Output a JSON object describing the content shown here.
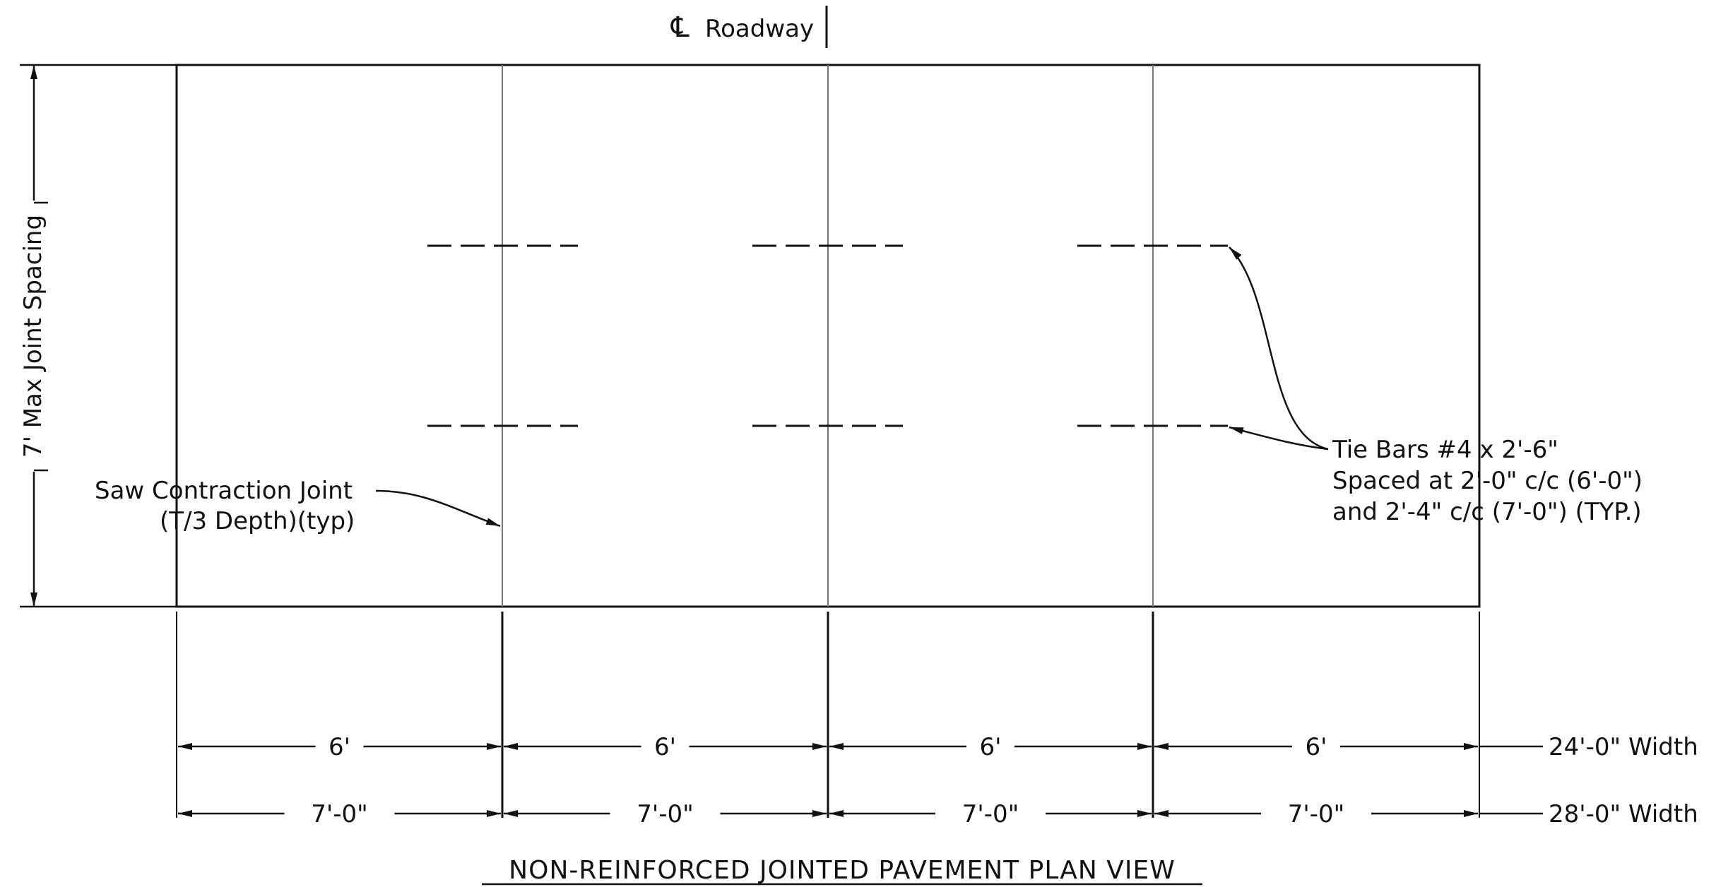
{
  "header": {
    "centerline_symbol": "℄",
    "centerline_label": "Roadway"
  },
  "dimensions": {
    "vertical_label": "7' Max Joint Spacing",
    "row1_segments": [
      "6'",
      "6'",
      "6'",
      "6'"
    ],
    "row1_total": "24'-0\" Width",
    "row2_segments": [
      "7'-0\"",
      "7'-0\"",
      "7'-0\"",
      "7'-0\""
    ],
    "row2_total": "28'-0\" Width"
  },
  "callouts": {
    "saw_joint_line1": "Saw Contraction Joint",
    "saw_joint_line2": "(T/3 Depth)(typ)",
    "tie_bars_line1": "Tie Bars #4 x 2'-6\"",
    "tie_bars_line2": "Spaced at 2'-0\" c/c (6'-0\")",
    "tie_bars_line3": "and 2'-4\" c/c (7'-0\") (TYP.)"
  },
  "title": "NON-REINFORCED JOINTED PAVEMENT PLAN VIEW",
  "colors": {
    "line": "#111111",
    "joint": "#777777"
  }
}
